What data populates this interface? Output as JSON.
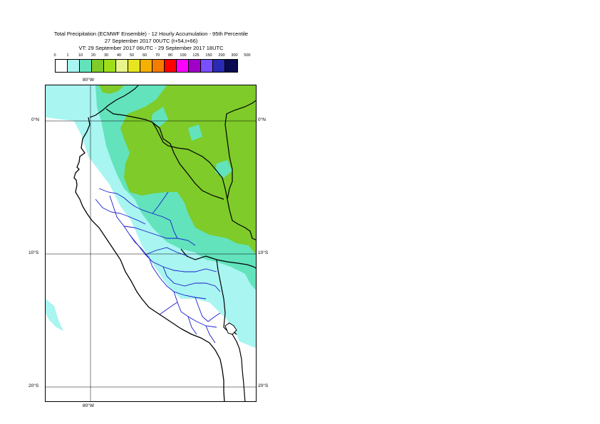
{
  "title": {
    "line1": "Total Precipitation (ECMWF Ensemble) - 12 Hourly Accumulation - 95th Percentile",
    "line2": "27 September 2017 00UTC (t+54,t+66)",
    "line3": "VT: 29 September 2017 06UTC - 29 September 2017 18UTC"
  },
  "legend": {
    "labels": [
      "0",
      "1",
      "10",
      "20",
      "30",
      "40",
      "50",
      "60",
      "70",
      "80",
      "100",
      "125",
      "150",
      "200",
      "300",
      "500"
    ],
    "colors": [
      "#ffffff",
      "#a8f5f1",
      "#62e3bc",
      "#7ecb2a",
      "#9edf1a",
      "#e8f58c",
      "#e6e620",
      "#f5b000",
      "#f57c00",
      "#ff0000",
      "#ff00ff",
      "#a000c8",
      "#7850ff",
      "#2a2ab4",
      "#0a0a50"
    ]
  },
  "map": {
    "lon_label_top": "80°W",
    "lon_label_bottom": "80°W",
    "lat_labels": {
      "n0_left": "0°N",
      "n0_right": "0°N",
      "s10_left": "10°S",
      "s10_right": "10°S",
      "s20_left": "20°S",
      "s20_right": "20°S"
    },
    "colors": {
      "ocean_light": "#a8f5f1",
      "rain_mid": "#62e3bc",
      "rain_high": "#7ecb2a",
      "coast": "#000000",
      "region_border": "#1a1acc",
      "grid": "#000000"
    }
  }
}
